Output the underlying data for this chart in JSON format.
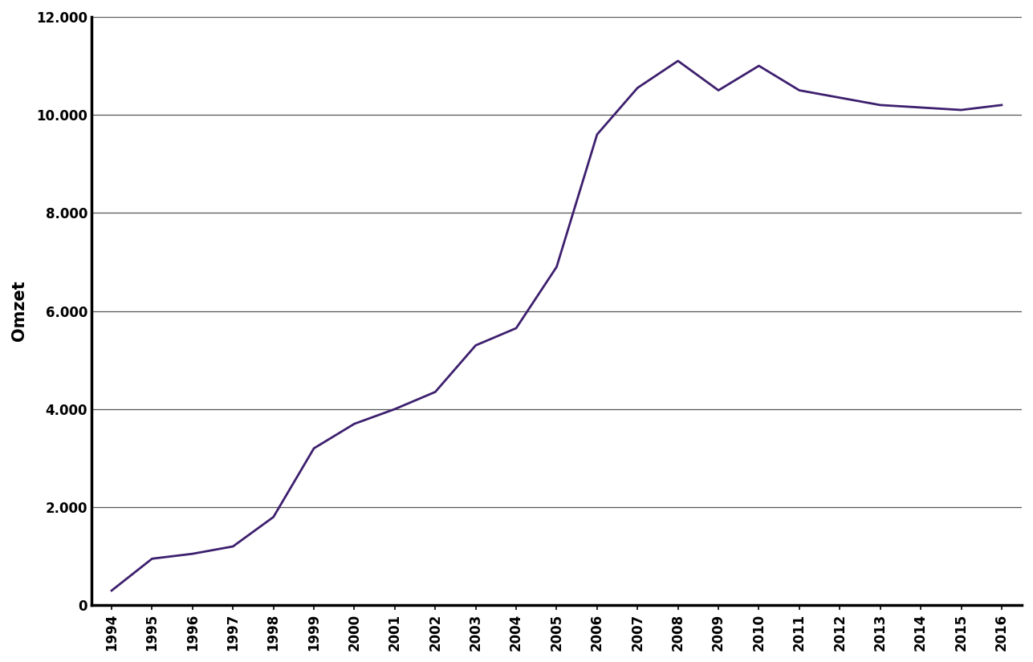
{
  "years": [
    1994,
    1995,
    1996,
    1997,
    1998,
    1999,
    2000,
    2001,
    2002,
    2003,
    2004,
    2005,
    2006,
    2007,
    2008,
    2009,
    2010,
    2011,
    2012,
    2013,
    2014,
    2015,
    2016
  ],
  "values": [
    300,
    950,
    1050,
    1200,
    1800,
    3200,
    3700,
    4000,
    4350,
    5300,
    5650,
    6900,
    9600,
    10550,
    11100,
    10500,
    11000,
    10500,
    10350,
    10200,
    10150,
    10100,
    10200
  ],
  "line_color": "#3d1f6e",
  "line_width": 2.0,
  "ylabel": "Omzet",
  "ylim": [
    0,
    12000
  ],
  "yticks": [
    0,
    2000,
    4000,
    6000,
    8000,
    10000,
    12000
  ],
  "ytick_labels": [
    "0",
    "2.000",
    "4.000",
    "6.000",
    "8.000",
    "10.000",
    "12.000"
  ],
  "background_color": "#ffffff",
  "grid_color": "#555555",
  "axis_color": "#000000",
  "spine_linewidth": 2.5,
  "ylabel_fontsize": 15,
  "tick_fontsize": 12
}
